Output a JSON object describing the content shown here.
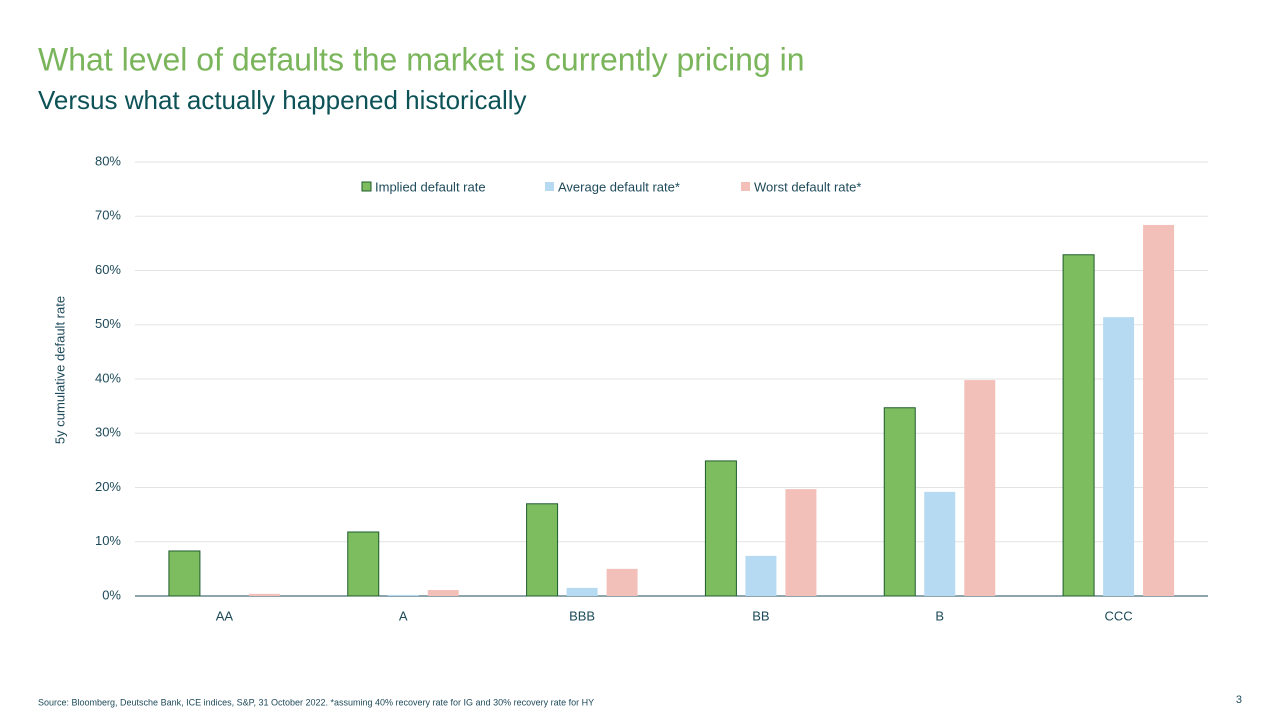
{
  "chart_data": {
    "type": "bar",
    "title": "What level of defaults the market is currently pricing in",
    "subtitle": "Versus what actually happened historically",
    "y_label": "5y cumulative default rate",
    "categories": [
      "AA",
      "A",
      "BBB",
      "BB",
      "B",
      "CCC"
    ],
    "series": [
      {
        "name": "Implied default rate",
        "color": "#7dbd5f",
        "values": [
          8.3,
          11.8,
          17.0,
          24.9,
          34.7,
          62.9
        ]
      },
      {
        "name": "Average default rate*",
        "color": "#b6daf1",
        "values": [
          0,
          0.2,
          1.5,
          7.4,
          19.2,
          51.4
        ]
      },
      {
        "name": "Worst default rate*",
        "color": "#f3c0b9",
        "values": [
          0.4,
          1.1,
          5.0,
          19.7,
          39.8,
          68.4
        ]
      }
    ],
    "ylim": [
      0,
      80
    ],
    "yticks": [
      {
        "value": 0,
        "label": "0%"
      },
      {
        "value": 10,
        "label": "10%"
      },
      {
        "value": 20,
        "label": "20%"
      },
      {
        "value": 30,
        "label": "30%"
      },
      {
        "value": 40,
        "label": "40%"
      },
      {
        "value": 50,
        "label": "50%"
      },
      {
        "value": 60,
        "label": "60%"
      },
      {
        "value": 70,
        "label": "70%"
      },
      {
        "value": 80,
        "label": "80%"
      }
    ],
    "grid": true,
    "legend": "top",
    "source": "Source: Bloomberg, Deutsche Bank, ICE indices, S&P, 31 October 2022.  *assuming 40% recovery rate for IG and 30% recovery rate for HY"
  },
  "page_number": "3"
}
